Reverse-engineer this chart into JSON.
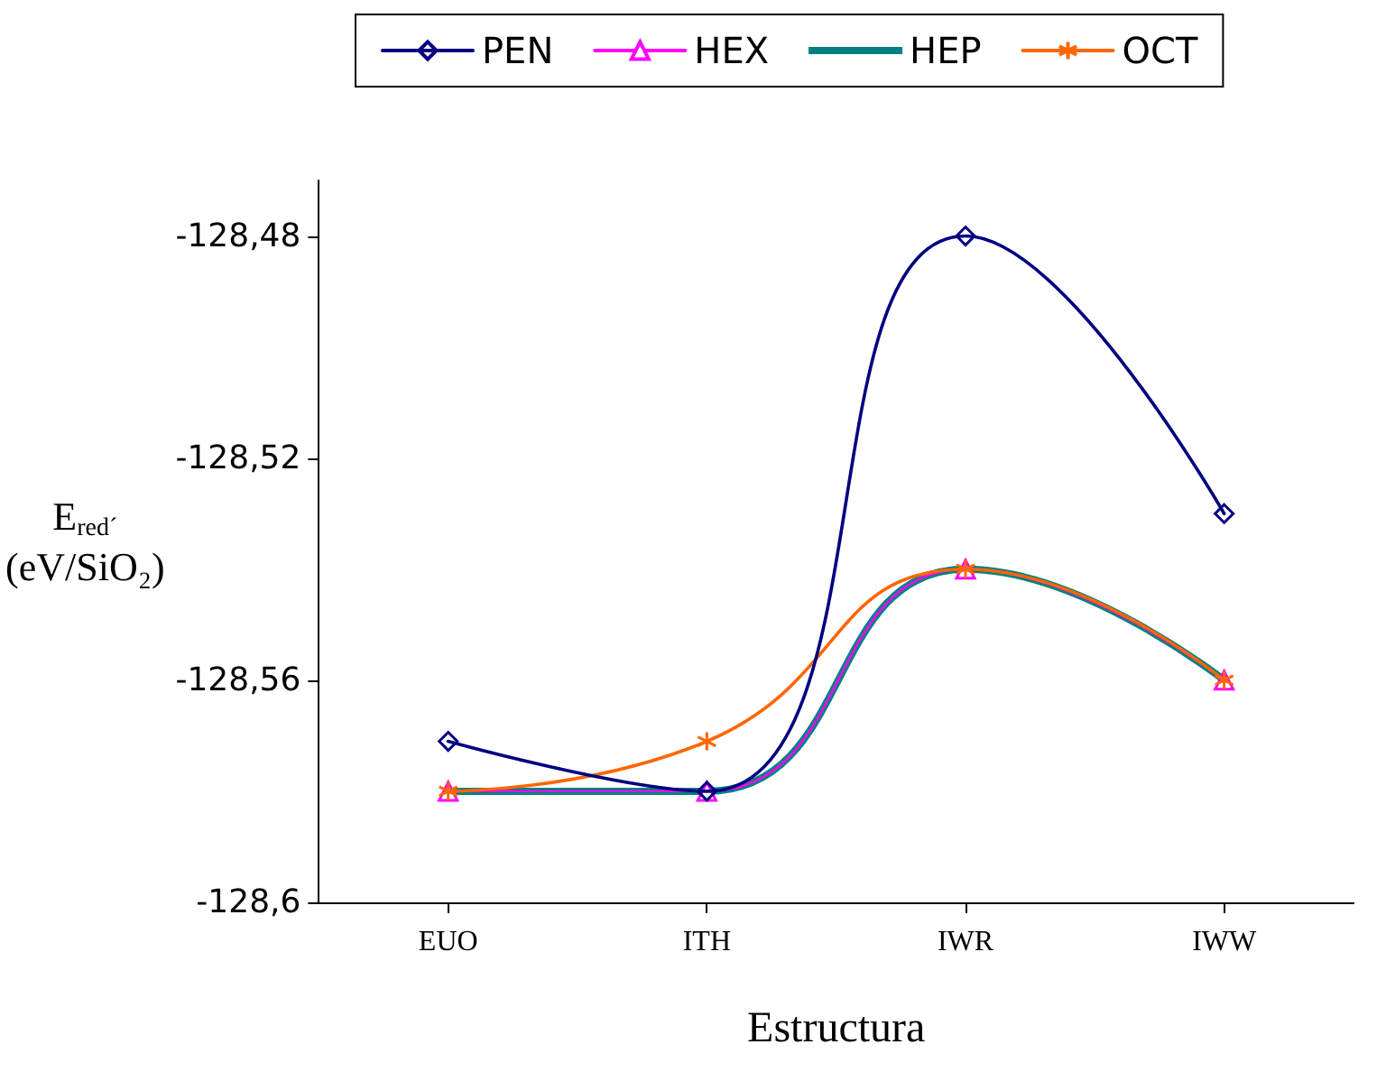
{
  "chart_data": {
    "type": "line",
    "xlabel": "Estructura",
    "ylabel": "E$_{red´}$\n(eV/SiO₂)",
    "categories": [
      "EUO",
      "ITH",
      "IWR",
      "IWW"
    ],
    "series": [
      {
        "name": "PEN",
        "color": "#000080",
        "marker": "diamond",
        "values": [
          -128.571,
          -128.58,
          -128.48,
          -128.53
        ]
      },
      {
        "name": "HEX",
        "color": "#ff00ff",
        "marker": "triangle",
        "values": [
          -128.58,
          -128.58,
          -128.54,
          -128.56
        ]
      },
      {
        "name": "HEP",
        "color": "#008080",
        "marker": "none",
        "values": [
          -128.58,
          -128.58,
          -128.54,
          -128.56
        ]
      },
      {
        "name": "OCT",
        "color": "#ff6600",
        "marker": "cross",
        "values": [
          -128.58,
          -128.571,
          -128.54,
          -128.56
        ]
      }
    ],
    "ylim": [
      -128.6,
      -128.47
    ],
    "yticks": [
      {
        "value": -128.6,
        "label": "-128,6"
      },
      {
        "value": -128.56,
        "label": "-128,56"
      },
      {
        "value": -128.52,
        "label": "-128,52"
      },
      {
        "value": -128.48,
        "label": "-128,48"
      }
    ],
    "grid": false,
    "legend": "top",
    "line_style": "solid"
  }
}
